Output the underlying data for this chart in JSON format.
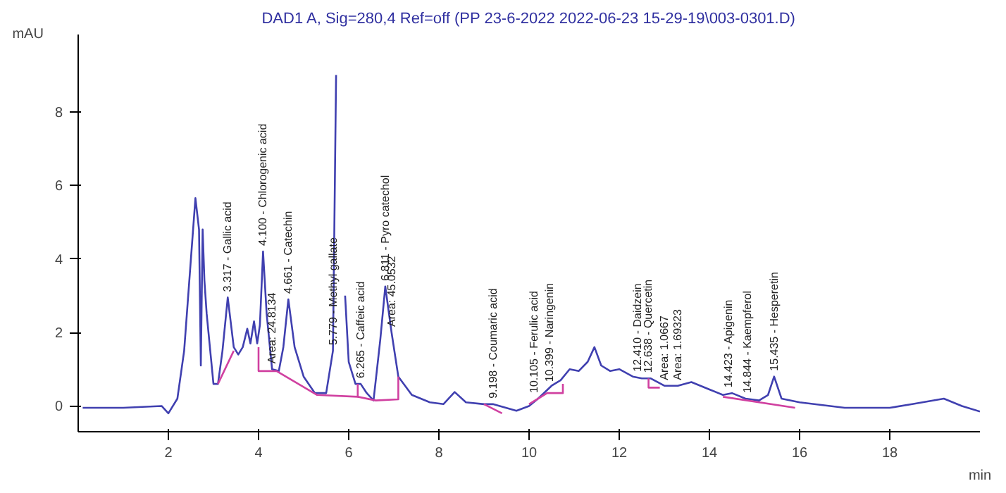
{
  "chart_data": {
    "type": "line",
    "title": "DAD1 A, Sig=280,4 Ref=off (PP 23-6-2022 2022-06-23 15-29-19\\003-0301.D)",
    "xlabel": "min",
    "ylabel": "mAU",
    "xlim": [
      0,
      20
    ],
    "ylim": [
      -0.7,
      10.1
    ],
    "xticks": [
      2,
      4,
      6,
      8,
      10,
      12,
      14,
      16,
      18
    ],
    "yticks": [
      0,
      2,
      4,
      6,
      8
    ],
    "grid": false,
    "line_style": "solid",
    "marker": "none",
    "series": [
      {
        "color": "#4040b0",
        "x": [
          0.1,
          1.0,
          1.85,
          2.0,
          2.2,
          2.35,
          2.5,
          2.6,
          2.68,
          2.72,
          2.76,
          2.8,
          2.85,
          3.0,
          3.1,
          3.2,
          3.317,
          3.45,
          3.55,
          3.65,
          3.75,
          3.82,
          3.9,
          3.97,
          4.03,
          4.1,
          4.18,
          4.3,
          4.45,
          4.55,
          4.661,
          4.8,
          5.0,
          5.25,
          5.5,
          5.65,
          5.72,
          5.779,
          5.85,
          5.92,
          6.0,
          6.15,
          6.265,
          6.4,
          6.55,
          6.7,
          6.811,
          6.95,
          7.1,
          7.4,
          7.8,
          8.1,
          8.35,
          8.6,
          9.0,
          9.198,
          9.72,
          10.0,
          10.2,
          10.5,
          10.7,
          10.9,
          11.1,
          11.3,
          11.45,
          11.6,
          11.8,
          12.0,
          12.3,
          12.5,
          12.7,
          13.0,
          13.3,
          13.6,
          14.0,
          14.3,
          14.5,
          14.8,
          15.1,
          15.3,
          15.435,
          15.6,
          16.0,
          17.0,
          18.0,
          18.5,
          19.2,
          19.6,
          20.0
        ],
        "values": [
          -0.05,
          -0.05,
          0.0,
          -0.2,
          0.2,
          1.5,
          4.0,
          5.65,
          4.8,
          1.1,
          4.8,
          3.4,
          2.5,
          0.6,
          0.6,
          1.5,
          2.95,
          1.6,
          1.4,
          1.6,
          2.1,
          1.7,
          2.3,
          1.7,
          2.2,
          4.2,
          2.5,
          1.0,
          0.95,
          1.6,
          2.9,
          1.6,
          0.8,
          0.35,
          0.35,
          1.5,
          9.0,
          null,
          null,
          3.0,
          1.2,
          0.6,
          0.6,
          0.35,
          0.15,
          1.8,
          3.25,
          2.0,
          0.8,
          0.3,
          0.1,
          0.05,
          0.38,
          0.1,
          0.05,
          0.05,
          -0.13,
          0.0,
          0.2,
          0.55,
          0.7,
          1.0,
          0.95,
          1.2,
          1.6,
          1.1,
          0.95,
          1.0,
          0.8,
          0.75,
          0.75,
          0.55,
          0.55,
          0.65,
          0.45,
          0.3,
          0.35,
          0.2,
          0.15,
          0.3,
          0.8,
          0.2,
          0.1,
          -0.05,
          -0.05,
          0.05,
          0.2,
          0.0,
          -0.15
        ]
      },
      {
        "color": "#d040a0",
        "x": [
          3.1,
          3.45
        ],
        "values": [
          0.6,
          1.5
        ]
      },
      {
        "color": "#d040a0",
        "x": [
          4.0,
          4.0,
          4.4,
          5.3,
          6.2,
          6.2
        ],
        "values": [
          1.6,
          0.95,
          0.95,
          0.3,
          0.25,
          0.6
        ]
      },
      {
        "color": "#d040a0",
        "x": [
          6.2,
          6.6,
          7.1,
          7.1
        ],
        "values": [
          0.25,
          0.15,
          0.18,
          0.8
        ]
      },
      {
        "color": "#d040a0",
        "x": [
          9.0,
          9.4
        ],
        "values": [
          0.05,
          -0.2
        ]
      },
      {
        "color": "#d040a0",
        "x": [
          10.0,
          10.4,
          10.75,
          10.75
        ],
        "values": [
          0.05,
          0.35,
          0.35,
          0.6
        ]
      },
      {
        "color": "#d040a0",
        "x": [
          12.65,
          12.65,
          12.9
        ],
        "values": [
          0.75,
          0.5,
          0.5
        ]
      },
      {
        "color": "#d040a0",
        "x": [
          14.3,
          15.9
        ],
        "values": [
          0.25,
          -0.05
        ]
      }
    ],
    "annotations": [
      {
        "text": "3.317 - Gallic acid",
        "x": 3.317,
        "y": 2.95
      },
      {
        "text": "4.100 - Chlorogenic acid",
        "x": 4.1,
        "y": 4.2
      },
      {
        "text": "Area: 24.8134",
        "x": 4.3,
        "y": 1.0
      },
      {
        "text": "4.661 - Catechin",
        "x": 4.661,
        "y": 2.9
      },
      {
        "text": "5.779 - Methyl gallate",
        "x": 5.65,
        "y": 1.5
      },
      {
        "text": "6.265 - Caffeic acid",
        "x": 6.265,
        "y": 0.6
      },
      {
        "text": "6.811 - Pyro catechol",
        "x": 6.811,
        "y": 3.25
      },
      {
        "text": "Area: 45.0532",
        "x": 6.95,
        "y": 2.0
      },
      {
        "text": "9.198 - Coumaric acid",
        "x": 9.198,
        "y": 0.05
      },
      {
        "text": "10.105 - Ferulic acid",
        "x": 10.105,
        "y": 0.2
      },
      {
        "text": "10.399 - Naringenin",
        "x": 10.45,
        "y": 0.5
      },
      {
        "text": "12.410 - Daidzein",
        "x": 12.41,
        "y": 0.78
      },
      {
        "text": "12.638 - Quercetin",
        "x": 12.638,
        "y": 0.75
      },
      {
        "text": "Area: 1.0667",
        "x": 13.0,
        "y": 0.55
      },
      {
        "text": "Area: 1.69323",
        "x": 13.3,
        "y": 0.55
      },
      {
        "text": "14.423 - Apigenin",
        "x": 14.423,
        "y": 0.35
      },
      {
        "text": "14.844 - Kaempferol",
        "x": 14.844,
        "y": 0.2
      },
      {
        "text": "15.435 - Hesperetin",
        "x": 15.435,
        "y": 0.8
      }
    ]
  }
}
